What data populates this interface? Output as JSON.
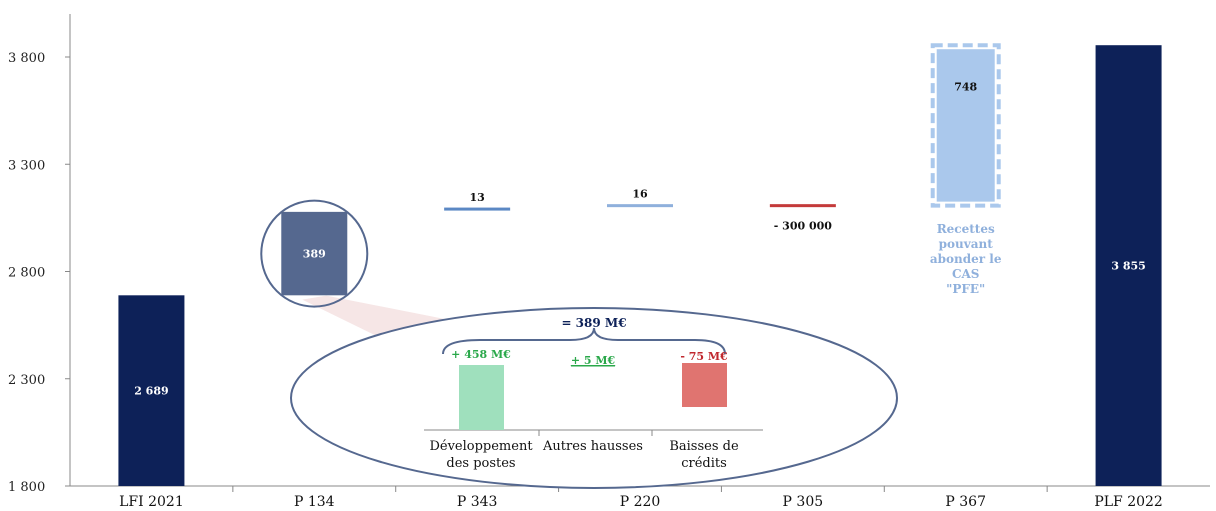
{
  "chart_data": {
    "type": "bar",
    "subtype": "waterfall",
    "ylim": [
      1800,
      4000
    ],
    "yticks": [
      "1 800",
      "2 300",
      "2 800",
      "3 300",
      "3 800"
    ],
    "ytick_values": [
      1800,
      2300,
      2800,
      3300,
      3800
    ],
    "categories": [
      "LFI 2021",
      "P 134",
      "P 343",
      "P 220",
      "P 305",
      "P 367",
      "PLF 2022"
    ],
    "bars": [
      {
        "category": "LFI 2021",
        "base": 1800,
        "top": 2689,
        "label": "2 689",
        "color": "#0d2158",
        "label_color": "#ffffff"
      },
      {
        "category": "P 134",
        "base": 2689,
        "top": 3078,
        "label": "389",
        "color": "#55688f",
        "label_color": "#ffffff"
      },
      {
        "category": "P 343",
        "base": 3078,
        "top": 3091,
        "label": "13",
        "color": "#5b88c4",
        "label_color": "#111111"
      },
      {
        "category": "P 220",
        "base": 3091,
        "top": 3107,
        "label": "16",
        "color": "#8fb0dc",
        "label_color": "#111111"
      },
      {
        "category": "P 305",
        "base": 3107,
        "top": 3107,
        "label": "- 300 000",
        "color": "#c43a3a",
        "label_color": "#111111"
      },
      {
        "category": "P 367",
        "base": 3107,
        "top": 3855,
        "label": "748",
        "color": "#aac8ec",
        "label_color": "#111111",
        "dashed": true
      },
      {
        "category": "PLF 2022",
        "base": 1800,
        "top": 3855,
        "label": "3 855",
        "color": "#0d2158",
        "label_color": "#ffffff"
      }
    ],
    "annotation_p367": [
      "Recettes",
      "pouvant",
      "abonder le",
      "CAS",
      "\"PFE\""
    ],
    "zoom_detail": {
      "total_label": "= 389 M€",
      "items": [
        {
          "label_line1": "Développement",
          "label_line2": "des postes",
          "value_label": "+ 458 M€",
          "color": "#9fe0bd",
          "value_color": "#2aa84a"
        },
        {
          "label_line1": "Autres hausses",
          "label_line2": "",
          "value_label": "+ 5 M€",
          "color": "#9fe0bd",
          "value_color": "#2aa84a"
        },
        {
          "label_line1": "Baisses de",
          "label_line2": "crédits",
          "value_label": "- 75 M€",
          "color": "#e07470",
          "value_color": "#c0272d"
        }
      ]
    }
  }
}
